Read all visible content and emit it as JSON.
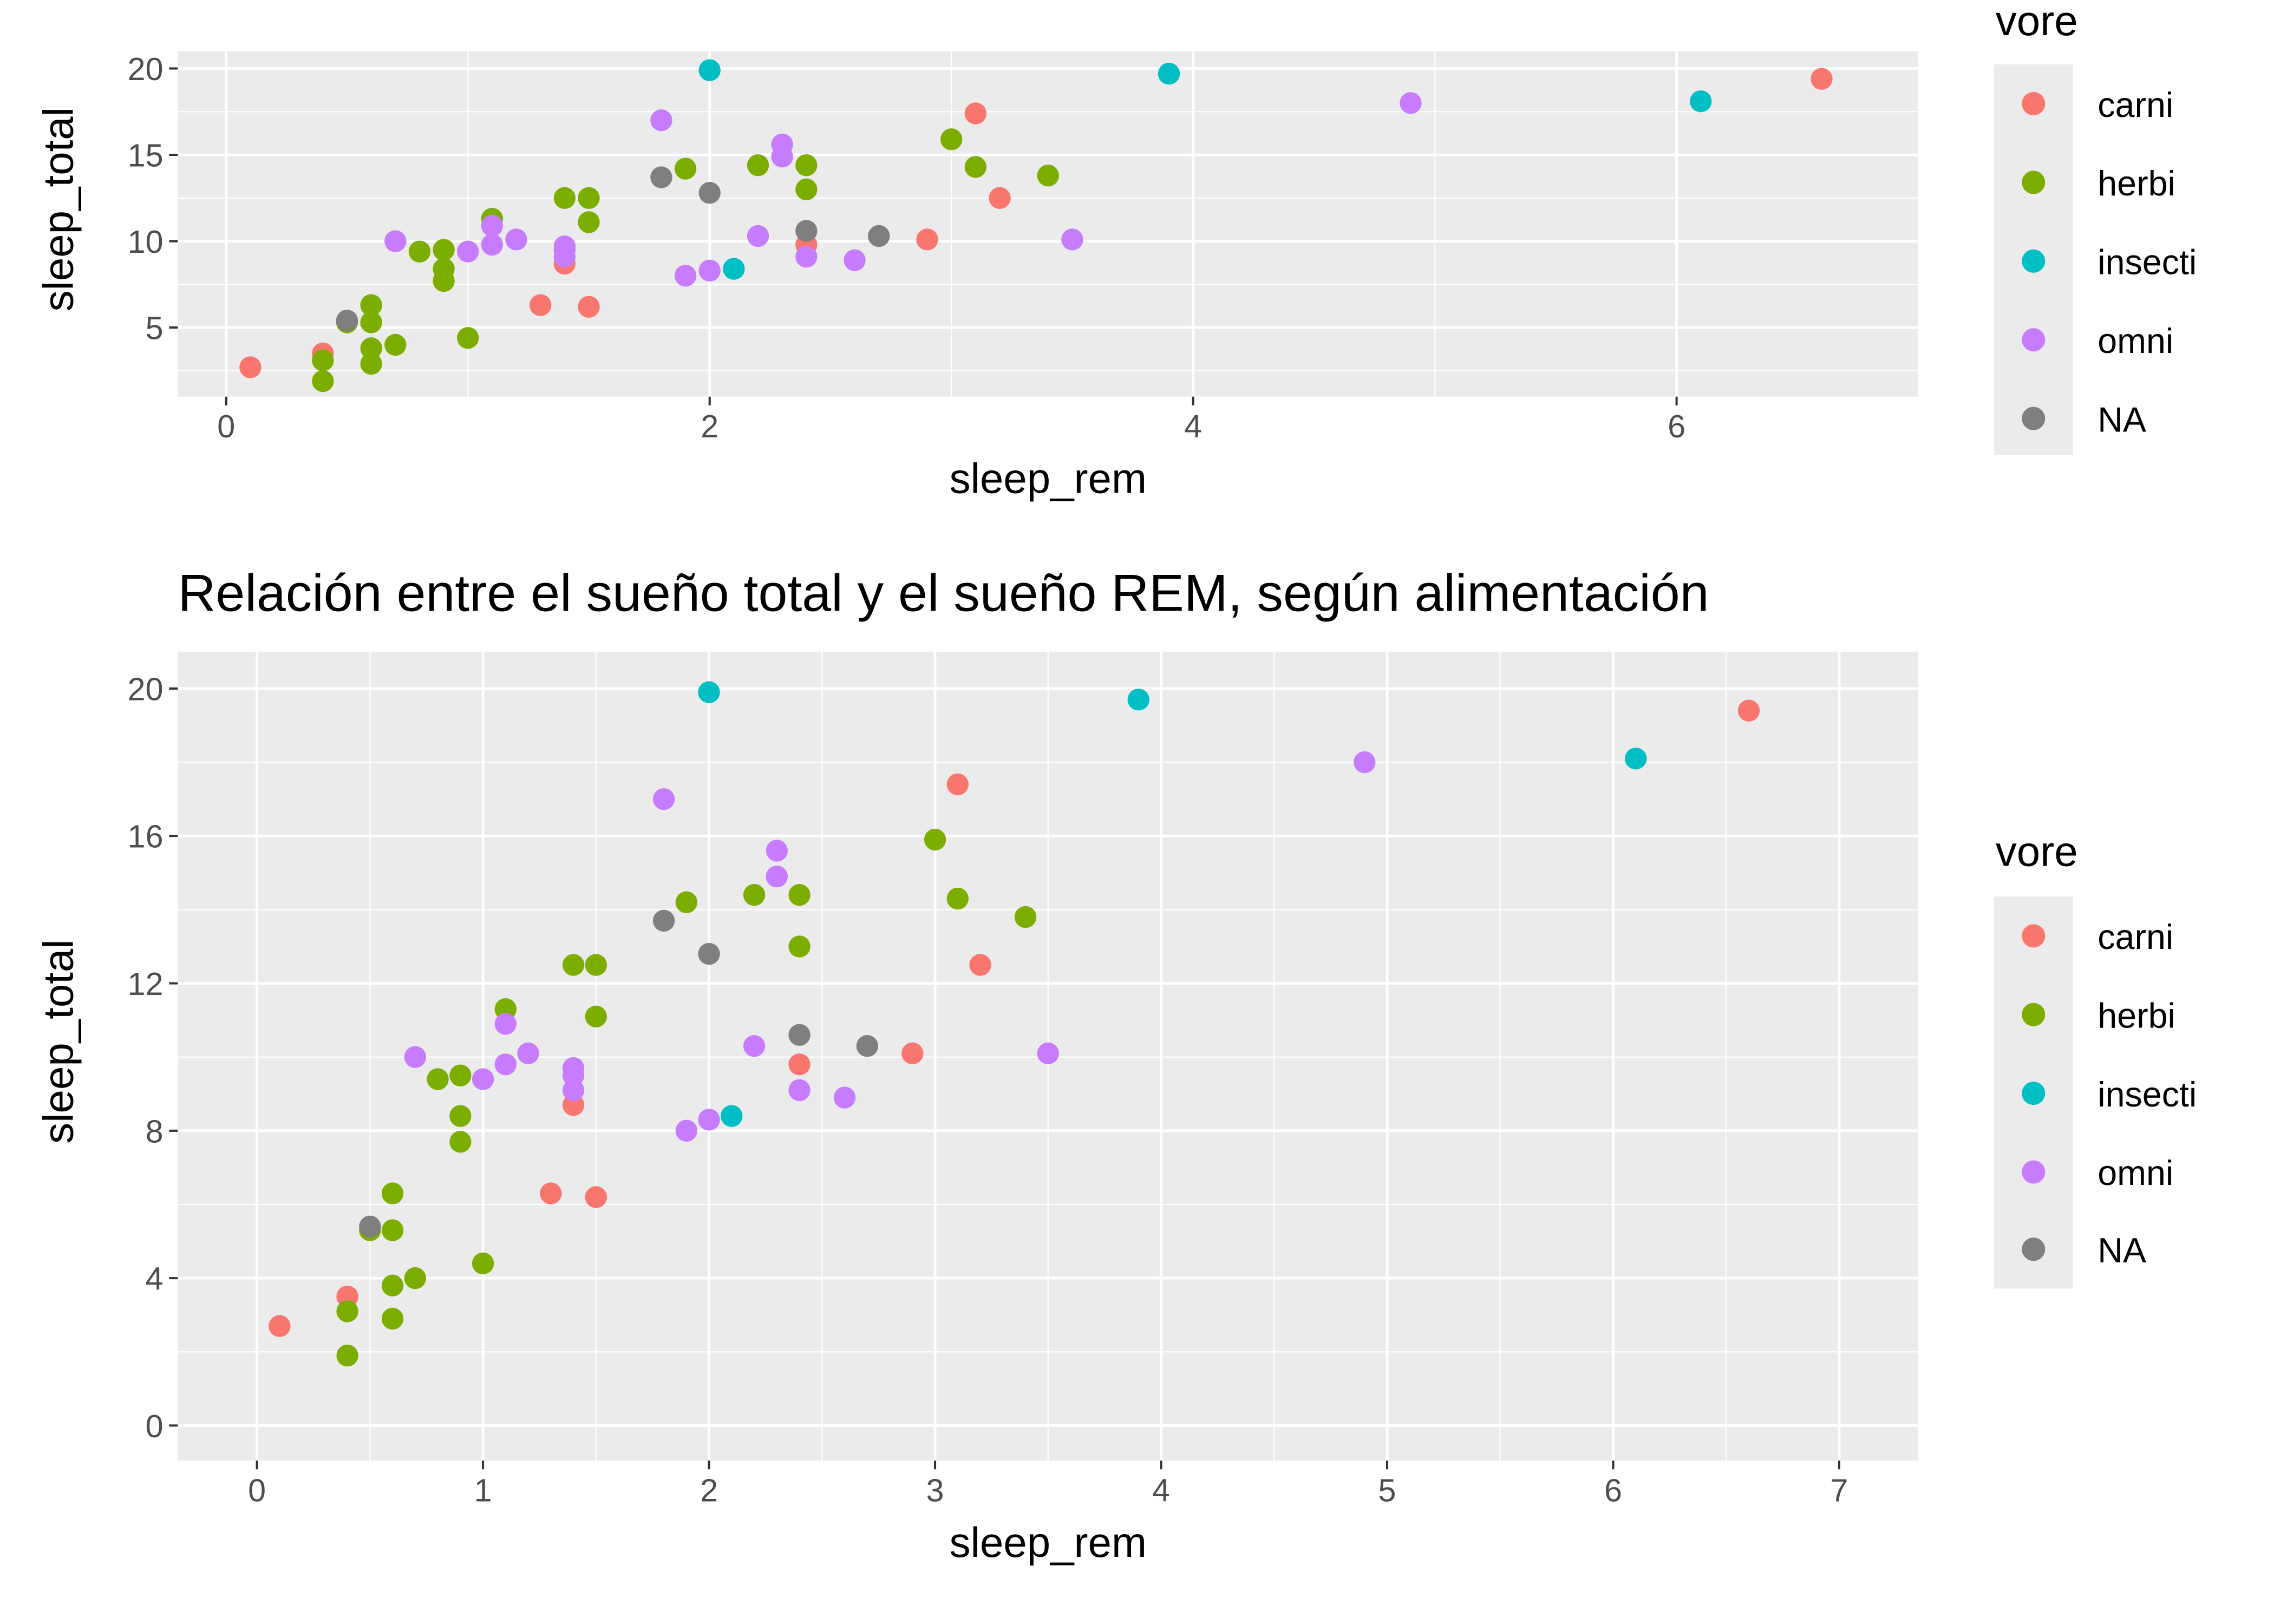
{
  "chart_data": [
    {
      "type": "scatter",
      "title": "",
      "xlabel": "sleep_rem",
      "ylabel": "sleep_total",
      "xlim": [
        -0.2,
        7.0
      ],
      "ylim": [
        1.0,
        21.0
      ],
      "xticks": [
        0,
        2,
        4,
        6
      ],
      "yticks": [
        5,
        10,
        15,
        20
      ],
      "grid": true,
      "legend": {
        "title": "vore",
        "placement": "right",
        "entries": [
          "carni",
          "herbi",
          "insecti",
          "omni",
          "NA"
        ]
      }
    },
    {
      "type": "scatter",
      "title": "Relación entre el sueño total y el sueño REM, según alimentación",
      "xlabel": "sleep_rem",
      "ylabel": "sleep_total",
      "xlim": [
        -0.35,
        7.35
      ],
      "ylim": [
        -0.95,
        21.0
      ],
      "xticks": [
        0,
        1,
        2,
        3,
        4,
        5,
        6,
        7
      ],
      "yticks": [
        0,
        4,
        8,
        12,
        16,
        20
      ],
      "grid": true,
      "legend": {
        "title": "vore",
        "placement": "right",
        "entries": [
          "carni",
          "herbi",
          "insecti",
          "omni",
          "NA"
        ]
      }
    }
  ],
  "colors": {
    "carni": "#F8766D",
    "herbi": "#7CAE00",
    "insecti": "#00BFC4",
    "omni": "#C77CFF",
    "NA": "#7F7F7F"
  },
  "series": [
    {
      "name": "carni",
      "points": [
        [
          0.1,
          2.7
        ],
        [
          0.4,
          3.5
        ],
        [
          1.3,
          6.3
        ],
        [
          1.4,
          8.7
        ],
        [
          1.5,
          6.2
        ],
        [
          2.4,
          9.8
        ],
        [
          2.9,
          10.1
        ],
        [
          3.1,
          17.4
        ],
        [
          3.2,
          12.5
        ],
        [
          6.6,
          19.4
        ]
      ]
    },
    {
      "name": "herbi",
      "points": [
        [
          0.4,
          3.1
        ],
        [
          0.4,
          1.9
        ],
        [
          0.5,
          5.3
        ],
        [
          0.6,
          6.3
        ],
        [
          0.6,
          5.3
        ],
        [
          0.6,
          3.8
        ],
        [
          0.6,
          2.9
        ],
        [
          0.7,
          4.0
        ],
        [
          0.8,
          9.4
        ],
        [
          0.9,
          9.5
        ],
        [
          0.9,
          8.4
        ],
        [
          0.9,
          7.7
        ],
        [
          1.0,
          4.4
        ],
        [
          1.1,
          11.3
        ],
        [
          1.4,
          12.5
        ],
        [
          1.5,
          12.5
        ],
        [
          1.5,
          11.1
        ],
        [
          1.9,
          14.2
        ],
        [
          2.2,
          14.4
        ],
        [
          2.4,
          14.4
        ],
        [
          2.4,
          13.0
        ],
        [
          3.0,
          15.9
        ],
        [
          3.1,
          14.3
        ],
        [
          3.4,
          13.8
        ]
      ]
    },
    {
      "name": "insecti",
      "points": [
        [
          2.0,
          19.9
        ],
        [
          2.1,
          8.4
        ],
        [
          3.9,
          19.7
        ],
        [
          6.1,
          18.1
        ]
      ]
    },
    {
      "name": "omni",
      "points": [
        [
          0.7,
          10.0
        ],
        [
          1.0,
          9.4
        ],
        [
          1.1,
          10.9
        ],
        [
          1.1,
          9.8
        ],
        [
          1.2,
          10.1
        ],
        [
          1.4,
          9.7
        ],
        [
          1.4,
          9.5
        ],
        [
          1.4,
          9.1
        ],
        [
          1.8,
          17.0
        ],
        [
          1.9,
          8.0
        ],
        [
          2.0,
          8.3
        ],
        [
          2.2,
          10.3
        ],
        [
          2.3,
          15.6
        ],
        [
          2.3,
          14.9
        ],
        [
          2.4,
          9.1
        ],
        [
          2.6,
          8.9
        ],
        [
          3.5,
          10.1
        ],
        [
          4.9,
          18.0
        ]
      ]
    },
    {
      "name": "NA",
      "points": [
        [
          0.5,
          5.4
        ],
        [
          1.8,
          13.7
        ],
        [
          2.0,
          12.8
        ],
        [
          2.4,
          10.6
        ],
        [
          2.7,
          10.3
        ]
      ]
    }
  ]
}
